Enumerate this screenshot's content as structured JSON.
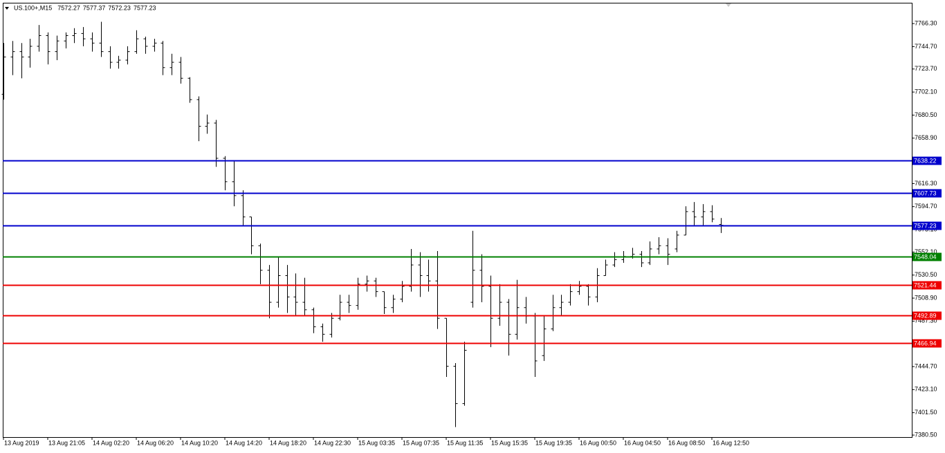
{
  "chart_data": {
    "type": "ohlc",
    "title": "US.100+,M15",
    "header_values": [
      7572.27,
      7577.37,
      7572.23,
      7577.23
    ],
    "color": "#000000",
    "ylim": [
      7378.6,
      7785.8
    ],
    "yticks": [
      {
        "value": 7766.3,
        "label": "7766.30"
      },
      {
        "value": 7744.7,
        "label": "7744.70"
      },
      {
        "value": 7723.7,
        "label": "7723.70"
      },
      {
        "value": 7702.1,
        "label": "7702.10"
      },
      {
        "value": 7680.5,
        "label": "7680.50"
      },
      {
        "value": 7658.9,
        "label": "7658.90"
      },
      {
        "value": 7616.3,
        "label": "7616.30"
      },
      {
        "value": 7594.7,
        "label": "7594.70"
      },
      {
        "value": 7573.1,
        "label": "7573.10"
      },
      {
        "value": 7552.1,
        "label": "7552.10"
      },
      {
        "value": 7530.5,
        "label": "7530.50"
      },
      {
        "value": 7508.9,
        "label": "7508.90"
      },
      {
        "value": 7487.3,
        "label": "7487.30"
      },
      {
        "value": 7444.7,
        "label": "7444.70"
      },
      {
        "value": 7423.1,
        "label": "7423.10"
      },
      {
        "value": 7401.5,
        "label": "7401.50"
      },
      {
        "value": 7380.5,
        "label": "7380.50"
      }
    ],
    "levels": [
      {
        "value": 7638.22,
        "color": "#0000cc"
      },
      {
        "value": 7607.73,
        "color": "#0000cc"
      },
      {
        "value": 7577.23,
        "color": "#0000cc"
      },
      {
        "value": 7548.04,
        "color": "#008000"
      },
      {
        "value": 7521.44,
        "color": "#ee0000"
      },
      {
        "value": 7492.89,
        "color": "#ee0000"
      },
      {
        "value": 7466.94,
        "color": "#ee0000"
      }
    ],
    "categories": [
      "13 Aug 2019",
      null,
      null,
      null,
      null,
      "13 Aug 21:05",
      null,
      null,
      null,
      null,
      "14 Aug 02:20",
      null,
      null,
      null,
      null,
      "14 Aug 06:20",
      null,
      null,
      null,
      null,
      "14 Aug 10:20",
      null,
      null,
      null,
      null,
      "14 Aug 14:20",
      null,
      null,
      null,
      null,
      "14 Aug 18:20",
      null,
      null,
      null,
      null,
      "14 Aug 22:30",
      null,
      null,
      null,
      null,
      "15 Aug 03:35",
      null,
      null,
      null,
      null,
      "15 Aug 07:35",
      null,
      null,
      null,
      null,
      "15 Aug 11:35",
      null,
      null,
      null,
      null,
      "15 Aug 15:35",
      null,
      null,
      null,
      null,
      "15 Aug 19:35",
      null,
      null,
      null,
      null,
      "16 Aug 00:50",
      null,
      null,
      null,
      null,
      "16 Aug 04:50",
      null,
      null,
      null,
      null,
      "16 Aug 08:50",
      null,
      null,
      null,
      null,
      "16 Aug 12:50",
      null
    ],
    "open": [
      7700,
      7735,
      7740,
      7735,
      7745,
      7755,
      7740,
      7750,
      7755,
      7757,
      7752,
      7748,
      7740,
      7730,
      7732,
      7740,
      7752,
      7745,
      7748,
      7725,
      7730,
      7715,
      7695,
      7670,
      7673,
      7640,
      7618,
      7605,
      7585,
      7558,
      7535,
      7505,
      7530,
      7510,
      7505,
      7498,
      7482,
      7475,
      7490,
      7505,
      7502,
      7522,
      7525,
      7515,
      7500,
      7508,
      7520,
      7540,
      7530,
      7525,
      7490,
      7445,
      7410,
      7505,
      7535,
      7520,
      7490,
      7505,
      7475,
      7500,
      7492,
      7455,
      7480,
      7500,
      7505,
      7515,
      7520,
      7510,
      7530,
      7540,
      7545,
      7548,
      7550,
      7542,
      7555,
      7558,
      7555,
      7568,
      7590,
      7585,
      7590,
      7578
    ],
    "high": [
      7748,
      7750,
      7748,
      7752,
      7765,
      7758,
      7755,
      7758,
      7762,
      7763,
      7758,
      7768,
      7745,
      7736,
      7745,
      7760,
      7754,
      7752,
      7750,
      7738,
      7735,
      7716,
      7698,
      7681,
      7676,
      7642,
      7638,
      7610,
      7585,
      7560,
      7540,
      7548,
      7540,
      7532,
      7528,
      7500,
      7485,
      7495,
      7512,
      7512,
      7528,
      7530,
      7528,
      7515,
      7512,
      7525,
      7555,
      7552,
      7545,
      7553,
      7490,
      7448,
      7468,
      7572,
      7550,
      7530,
      7522,
      7508,
      7526,
      7510,
      7495,
      7492,
      7512,
      7512,
      7522,
      7525,
      7522,
      7537,
      7545,
      7552,
      7553,
      7556,
      7553,
      7562,
      7566,
      7565,
      7572,
      7595,
      7599,
      7597,
      7596,
      7584
    ],
    "low": [
      7695,
      7718,
      7715,
      7725,
      7740,
      7728,
      7732,
      7743,
      7748,
      7745,
      7740,
      7735,
      7724,
      7724,
      7728,
      7738,
      7738,
      7740,
      7718,
      7718,
      7710,
      7692,
      7656,
      7663,
      7632,
      7610,
      7595,
      7577,
      7550,
      7522,
      7490,
      7500,
      7495,
      7492,
      7493,
      7476,
      7468,
      7472,
      7488,
      7495,
      7498,
      7515,
      7510,
      7494,
      7495,
      7505,
      7515,
      7510,
      7515,
      7480,
      7435,
      7388,
      7408,
      7500,
      7505,
      7463,
      7483,
      7455,
      7470,
      7485,
      7435,
      7450,
      7478,
      7492,
      7502,
      7512,
      7502,
      7505,
      7530,
      7538,
      7542,
      7546,
      7538,
      7540,
      7550,
      7540,
      7552,
      7568,
      7577,
      7577,
      7580,
      7570
    ],
    "close": [
      7735,
      7740,
      7735,
      7745,
      7755,
      7740,
      7750,
      7755,
      7757,
      7752,
      7748,
      7740,
      7730,
      7732,
      7740,
      7752,
      7745,
      7748,
      7725,
      7730,
      7715,
      7695,
      7670,
      7673,
      7640,
      7618,
      7605,
      7585,
      7558,
      7535,
      7505,
      7530,
      7510,
      7505,
      7498,
      7482,
      7475,
      7490,
      7505,
      7502,
      7522,
      7525,
      7515,
      7500,
      7508,
      7520,
      7540,
      7530,
      7525,
      7490,
      7445,
      7410,
      7460,
      7535,
      7520,
      7490,
      7505,
      7475,
      7500,
      7492,
      7450,
      7480,
      7500,
      7505,
      7515,
      7520,
      7510,
      7530,
      7540,
      7545,
      7548,
      7550,
      7542,
      7555,
      7558,
      7550,
      7568,
      7590,
      7585,
      7590,
      7583,
      7577.23
    ]
  }
}
